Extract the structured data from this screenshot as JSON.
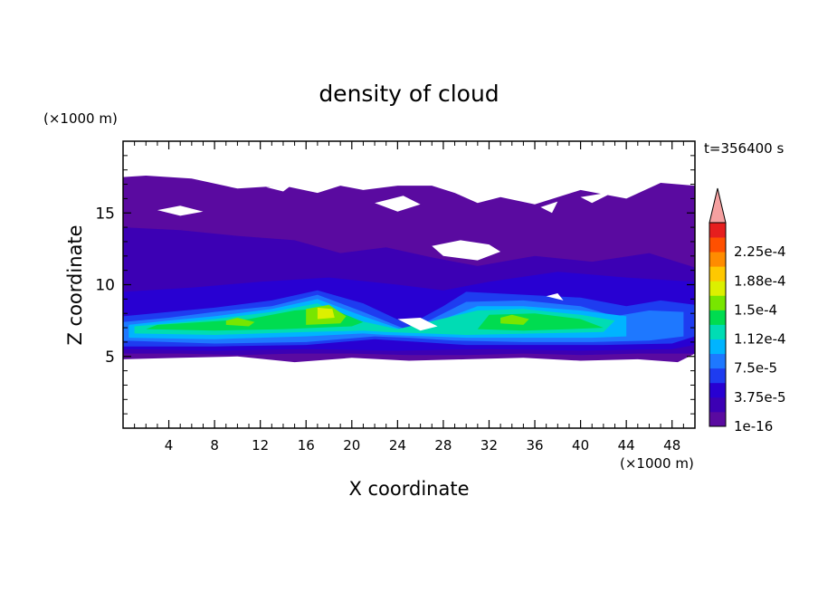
{
  "chart_data": {
    "type": "heatmap",
    "title": "density of cloud",
    "xlabel": "X coordinate",
    "ylabel": "Z coordinate",
    "x_unit": "(×1000 m)",
    "y_unit": "(×1000 m)",
    "time_label": "t=356400 s",
    "xlim": [
      0,
      50
    ],
    "ylim": [
      0,
      20
    ],
    "x_ticks": [
      4,
      8,
      12,
      16,
      20,
      24,
      28,
      32,
      36,
      40,
      44,
      48
    ],
    "y_ticks": [
      5,
      10,
      15
    ],
    "colorbar": {
      "levels": [
        1e-16,
        1.875e-05,
        3.75e-05,
        5.625e-05,
        7.5e-05,
        9.375e-05,
        0.0001125,
        0.00013125,
        0.00015,
        0.00016875,
        0.0001875,
        0.00020625,
        0.000225,
        0.00024375
      ],
      "labeled_levels": [
        {
          "value": 1e-16,
          "label": "1e-16"
        },
        {
          "value": 3.75e-05,
          "label": "3.75e-5"
        },
        {
          "value": 7.5e-05,
          "label": "7.5e-5"
        },
        {
          "value": 0.0001125,
          "label": "1.12e-4"
        },
        {
          "value": 0.00015,
          "label": "1.5e-4"
        },
        {
          "value": 0.0001875,
          "label": "1.88e-4"
        },
        {
          "value": 0.000225,
          "label": "2.25e-4"
        }
      ],
      "colors": [
        "#5a0aa0",
        "#3c00b4",
        "#2800d2",
        "#1e3cf0",
        "#1e78ff",
        "#00b4ff",
        "#00dcb4",
        "#00dc50",
        "#78e600",
        "#dcf000",
        "#ffc800",
        "#ff8c00",
        "#ff5000",
        "#e61e1e"
      ],
      "overflow_color": "#f5a0a0"
    },
    "regions": [
      {
        "level": 0,
        "points": [
          [
            0,
            4.8
          ],
          [
            5,
            4.9
          ],
          [
            10,
            5.0
          ],
          [
            15,
            4.6
          ],
          [
            20,
            4.9
          ],
          [
            25,
            4.7
          ],
          [
            30,
            4.8
          ],
          [
            35,
            4.9
          ],
          [
            40,
            4.7
          ],
          [
            45,
            4.8
          ],
          [
            48.5,
            4.6
          ],
          [
            50,
            5.2
          ],
          [
            50,
            16.9
          ],
          [
            47,
            17.1
          ],
          [
            44,
            16.0
          ],
          [
            40,
            16.6
          ],
          [
            36,
            15.6
          ],
          [
            33,
            16.1
          ],
          [
            31,
            15.7
          ],
          [
            29,
            16.4
          ],
          [
            27,
            16.9
          ],
          [
            24,
            16.9
          ],
          [
            21,
            16.6
          ],
          [
            19,
            16.9
          ],
          [
            17,
            16.4
          ],
          [
            14,
            16.9
          ],
          [
            10,
            16.7
          ],
          [
            6,
            17.4
          ],
          [
            2,
            17.6
          ],
          [
            0,
            17.5
          ]
        ]
      },
      {
        "level": 1,
        "points": [
          [
            0,
            5.2
          ],
          [
            5,
            5.2
          ],
          [
            10,
            5.1
          ],
          [
            15,
            5.2
          ],
          [
            20,
            5.2
          ],
          [
            25,
            5.1
          ],
          [
            30,
            5.1
          ],
          [
            35,
            5.2
          ],
          [
            40,
            5.1
          ],
          [
            45,
            5.2
          ],
          [
            50,
            5.2
          ],
          [
            50,
            11.2
          ],
          [
            46,
            12.2
          ],
          [
            41,
            11.6
          ],
          [
            36,
            12.0
          ],
          [
            31,
            11.3
          ],
          [
            27,
            11.9
          ],
          [
            23,
            12.6
          ],
          [
            19,
            12.2
          ],
          [
            15,
            13.1
          ],
          [
            10,
            13.4
          ],
          [
            5,
            13.8
          ],
          [
            0,
            14.0
          ]
        ]
      },
      {
        "level": 2,
        "points": [
          [
            0,
            5.5
          ],
          [
            8,
            5.4
          ],
          [
            16,
            5.5
          ],
          [
            24,
            5.4
          ],
          [
            32,
            5.5
          ],
          [
            40,
            5.4
          ],
          [
            48,
            5.5
          ],
          [
            50,
            5.8
          ],
          [
            50,
            10.2
          ],
          [
            44,
            10.5
          ],
          [
            38,
            10.9
          ],
          [
            32,
            10.2
          ],
          [
            28,
            9.6
          ],
          [
            24,
            10.0
          ],
          [
            18,
            10.5
          ],
          [
            12,
            10.2
          ],
          [
            6,
            9.8
          ],
          [
            0,
            9.5
          ]
        ]
      },
      {
        "level": 3,
        "points": [
          [
            0,
            5.7
          ],
          [
            8,
            5.7
          ],
          [
            16,
            5.8
          ],
          [
            22,
            6.2
          ],
          [
            26,
            6.0
          ],
          [
            30,
            5.8
          ],
          [
            36,
            5.8
          ],
          [
            42,
            5.8
          ],
          [
            48,
            5.9
          ],
          [
            50,
            6.4
          ],
          [
            50,
            8.6
          ],
          [
            47,
            8.9
          ],
          [
            44,
            8.5
          ],
          [
            40,
            9.1
          ],
          [
            35,
            9.3
          ],
          [
            30,
            9.5
          ],
          [
            28,
            8.5
          ],
          [
            25,
            7.2
          ],
          [
            21,
            8.7
          ],
          [
            17,
            9.6
          ],
          [
            13,
            8.9
          ],
          [
            8,
            8.4
          ],
          [
            4,
            8.1
          ],
          [
            0,
            7.8
          ]
        ]
      },
      {
        "level": 4,
        "points": [
          [
            0,
            6.1
          ],
          [
            8,
            5.9
          ],
          [
            16,
            6.0
          ],
          [
            22,
            6.4
          ],
          [
            25,
            6.3
          ],
          [
            29,
            6.1
          ],
          [
            35,
            6.0
          ],
          [
            41,
            6.0
          ],
          [
            46,
            6.1
          ],
          [
            49,
            6.4
          ],
          [
            49,
            8.1
          ],
          [
            46,
            8.2
          ],
          [
            43,
            7.8
          ],
          [
            40,
            8.5
          ],
          [
            35,
            8.9
          ],
          [
            30,
            8.8
          ],
          [
            25,
            6.8
          ],
          [
            21,
            8.1
          ],
          [
            17,
            9.3
          ],
          [
            13,
            8.5
          ],
          [
            8,
            8.1
          ],
          [
            4,
            7.7
          ],
          [
            0,
            7.4
          ]
        ]
      },
      {
        "level": 5,
        "points": [
          [
            0.5,
            6.3
          ],
          [
            8,
            6.2
          ],
          [
            16,
            6.4
          ],
          [
            21,
            6.6
          ],
          [
            23,
            6.5
          ],
          [
            30,
            6.3
          ],
          [
            36,
            6.3
          ],
          [
            41,
            6.3
          ],
          [
            44,
            6.4
          ],
          [
            44,
            7.8
          ],
          [
            40,
            8.2
          ],
          [
            35,
            8.5
          ],
          [
            31,
            8.5
          ],
          [
            25,
            6.7
          ],
          [
            21,
            7.8
          ],
          [
            17,
            9.0
          ],
          [
            13,
            8.3
          ],
          [
            8,
            7.8
          ],
          [
            4,
            7.5
          ],
          [
            0.5,
            7.2
          ]
        ]
      },
      {
        "level": 6,
        "points": [
          [
            1,
            6.6
          ],
          [
            8,
            6.5
          ],
          [
            16,
            6.7
          ],
          [
            21,
            6.8
          ],
          [
            23,
            6.7
          ],
          [
            30,
            6.5
          ],
          [
            36,
            6.6
          ],
          [
            42,
            6.7
          ],
          [
            43,
            7.5
          ],
          [
            40,
            7.9
          ],
          [
            35,
            8.3
          ],
          [
            31,
            8.2
          ],
          [
            24,
            6.9
          ],
          [
            20,
            7.6
          ],
          [
            17,
            8.7
          ],
          [
            13,
            8.1
          ],
          [
            8,
            7.6
          ],
          [
            4,
            7.3
          ],
          [
            1,
            7.1
          ]
        ]
      },
      {
        "level": 7,
        "points": [
          [
            2,
            6.9
          ],
          [
            8,
            6.8
          ],
          [
            14,
            6.9
          ],
          [
            20,
            7.1
          ],
          [
            21,
            7.4
          ],
          [
            18,
            8.4
          ],
          [
            15,
            8.2
          ],
          [
            11,
            7.6
          ],
          [
            7,
            7.4
          ],
          [
            3,
            7.2
          ]
        ]
      },
      {
        "level": 7,
        "points": [
          [
            31,
            6.9
          ],
          [
            35,
            6.8
          ],
          [
            39,
            6.9
          ],
          [
            42,
            7.0
          ],
          [
            40,
            7.6
          ],
          [
            36,
            8.0
          ],
          [
            32,
            7.9
          ]
        ]
      },
      {
        "level": 8,
        "points": [
          [
            16,
            7.2
          ],
          [
            19,
            7.3
          ],
          [
            19.5,
            7.8
          ],
          [
            18,
            8.6
          ],
          [
            16,
            8.3
          ]
        ]
      },
      {
        "level": 8,
        "points": [
          [
            9,
            7.2
          ],
          [
            11,
            7.1
          ],
          [
            11.5,
            7.4
          ],
          [
            10,
            7.7
          ],
          [
            9,
            7.5
          ]
        ]
      },
      {
        "level": 8,
        "points": [
          [
            33,
            7.3
          ],
          [
            35,
            7.2
          ],
          [
            35.5,
            7.6
          ],
          [
            34,
            7.9
          ],
          [
            33,
            7.7
          ]
        ]
      },
      {
        "level": 9,
        "points": [
          [
            17,
            7.6
          ],
          [
            18.5,
            7.7
          ],
          [
            18.3,
            8.3
          ],
          [
            17,
            8.4
          ]
        ]
      }
    ],
    "holes": [
      {
        "points": [
          [
            3,
            15.2
          ],
          [
            5,
            15.5
          ],
          [
            7,
            15.1
          ],
          [
            5,
            14.8
          ]
        ]
      },
      {
        "points": [
          [
            22,
            15.7
          ],
          [
            24.5,
            16.2
          ],
          [
            26,
            15.6
          ],
          [
            24,
            15.1
          ]
        ]
      },
      {
        "points": [
          [
            27,
            12.7
          ],
          [
            29.5,
            13.1
          ],
          [
            32,
            12.8
          ],
          [
            33,
            12.3
          ],
          [
            31,
            11.7
          ],
          [
            28,
            12.0
          ]
        ]
      },
      {
        "points": [
          [
            24,
            7.6
          ],
          [
            26,
            7.7
          ],
          [
            27.5,
            7.1
          ],
          [
            26,
            6.8
          ]
        ]
      },
      {
        "points": [
          [
            37,
            9.2
          ],
          [
            38,
            9.4
          ],
          [
            38.5,
            8.9
          ]
        ]
      },
      {
        "points": [
          [
            12.5,
            16.8
          ],
          [
            15,
            17.1
          ],
          [
            14,
            16.5
          ]
        ]
      },
      {
        "points": [
          [
            40,
            16.1
          ],
          [
            43,
            16.5
          ],
          [
            41,
            15.7
          ]
        ]
      },
      {
        "points": [
          [
            36.5,
            15.4
          ],
          [
            38,
            15.8
          ],
          [
            37.5,
            15.0
          ]
        ]
      }
    ]
  }
}
